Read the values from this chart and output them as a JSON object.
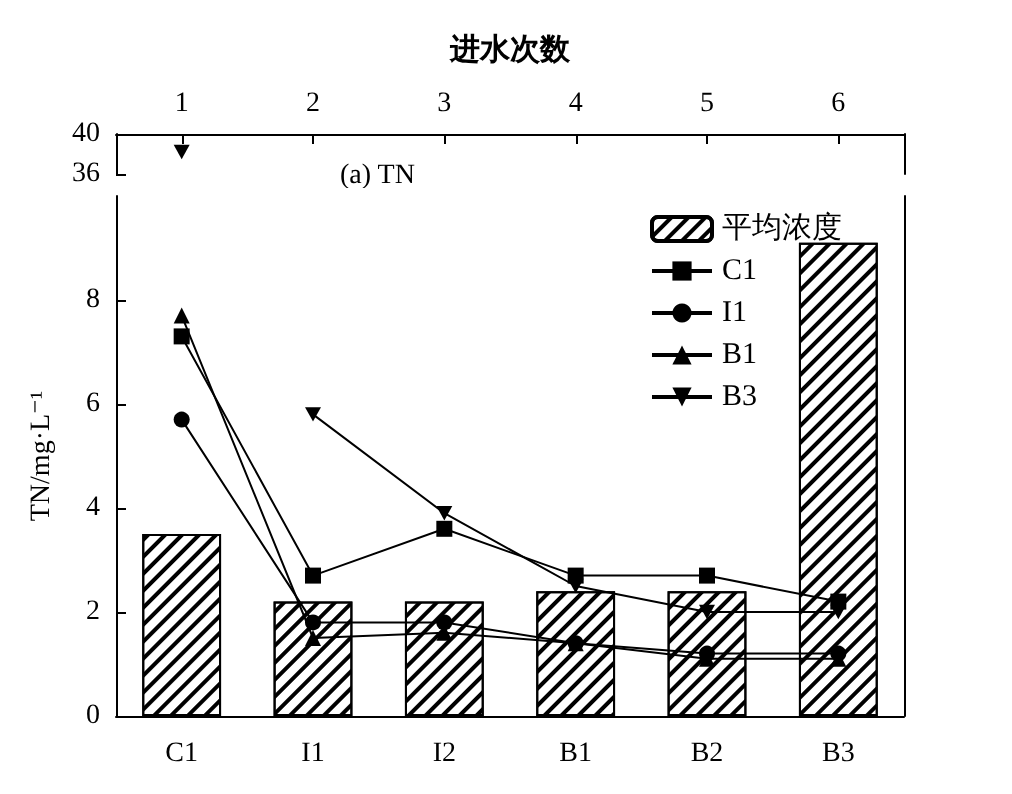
{
  "chart_data": [
    {
      "type": "line",
      "title": "(a) TN",
      "xlabel": "进水次数",
      "xlim": [
        0.5,
        6.5
      ],
      "xticks": [
        1,
        2,
        3,
        4,
        5,
        6
      ],
      "ylim": [
        36,
        40
      ],
      "yticks": [
        36,
        40
      ],
      "series": [
        {
          "color": "#000000",
          "marker": "triangle-down",
          "x": [
            1
          ],
          "values": [
            38.2
          ]
        }
      ]
    },
    {
      "type": "bar",
      "ylabel": "TN/mg·L⁻¹",
      "categories": [
        "C1",
        "I1",
        "I2",
        "B1",
        "B2",
        "B3"
      ],
      "ylim": [
        0,
        10
      ],
      "yticks": [
        0,
        2,
        4,
        6,
        8
      ],
      "legend": "top right",
      "series": [
        {
          "name": "平均浓度",
          "color": "#ffffff",
          "values": [
            3.5,
            2.2,
            2.2,
            2.4,
            2.4,
            9.1
          ]
        },
        {
          "name": "C1",
          "type": "line",
          "color": "#000000",
          "marker": "square",
          "values": [
            7.3,
            2.7,
            3.6,
            2.7,
            2.7,
            2.2
          ]
        },
        {
          "name": "I1",
          "type": "line",
          "color": "#000000",
          "marker": "circle",
          "values": [
            5.7,
            1.8,
            1.8,
            1.4,
            1.2,
            1.2
          ]
        },
        {
          "name": "B1",
          "type": "line",
          "color": "#000000",
          "marker": "triangle",
          "values": [
            7.7,
            1.5,
            1.6,
            1.4,
            1.1,
            1.1
          ]
        },
        {
          "name": "B3",
          "type": "line",
          "color": "#000000",
          "marker": "triangle-down",
          "values": [
            null,
            5.8,
            3.9,
            2.5,
            2.0,
            2.0
          ]
        }
      ]
    }
  ]
}
